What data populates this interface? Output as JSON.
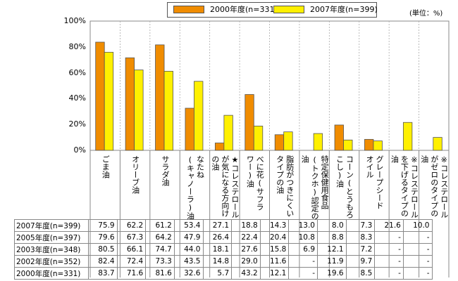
{
  "unit_label": "(単位：%)",
  "chart_data": {
    "type": "bar",
    "ylim": [
      0,
      100
    ],
    "yticks": [
      "0%",
      "20%",
      "40%",
      "60%",
      "80%",
      "100%"
    ],
    "categories": [
      "ごま油",
      "オリーブ油",
      "サラダ油",
      "なたね(キャノーラ)油",
      "★コレステロールが気になる方向けの油",
      "べに花(サフラワー)油",
      "脂肪がつきにくいタイプの油",
      "特定保健用食品(トクホ)認定の油",
      "コーン(とうもろこし)油",
      "グレープシードオイル",
      "※コレステロールを下げるタイプの油",
      "※コレステロールがゼロのタイプの油"
    ],
    "category_lines": [
      [
        "ごま油"
      ],
      [
        "オリーブ油"
      ],
      [
        "サラダ油"
      ],
      [
        "なたね",
        "(キャノーラ)油"
      ],
      [
        "★コレステロール",
        "が気になる方向け",
        "の油"
      ],
      [
        "べに花(サフラ",
        "ワー)油"
      ],
      [
        "脂肪がつきにくい",
        "タイプの油"
      ],
      [
        "特定保健用食品",
        "(トクホ)認定の",
        "油"
      ],
      [
        "コーン(とうもろ",
        "こし)油"
      ],
      [
        "グレープシード",
        "オイル"
      ],
      [
        "※コレステロール",
        "を下げるタイプの",
        "油"
      ],
      [
        "※コレステロール",
        "がゼロのタイプの",
        "油"
      ]
    ],
    "series": [
      {
        "name": "2000年度(n=331)",
        "color": "#F08C00",
        "values": [
          83.7,
          71.6,
          81.6,
          32.6,
          5.7,
          43.2,
          12.1,
          null,
          19.6,
          8.5,
          null,
          null
        ]
      },
      {
        "name": "2007年度(n=399)",
        "color": "#FFF000",
        "values": [
          75.9,
          62.2,
          61.2,
          53.4,
          27.1,
          18.8,
          14.3,
          13.0,
          8.0,
          7.3,
          21.6,
          10.0
        ]
      }
    ],
    "table": {
      "rows": [
        {
          "label": "2007年度(n=399)",
          "values": [
            "75.9",
            "62.2",
            "61.2",
            "53.4",
            "27.1",
            "18.8",
            "14.3",
            "13.0",
            "8.0",
            "7.3",
            "21.6",
            "10.0"
          ]
        },
        {
          "label": "2005年度(n=397)",
          "values": [
            "79.6",
            "67.3",
            "64.2",
            "47.9",
            "26.4",
            "22.4",
            "20.4",
            "10.8",
            "8.8",
            "8.3",
            "-",
            "-"
          ]
        },
        {
          "label": "2003年度(n=348)",
          "values": [
            "80.5",
            "66.1",
            "74.7",
            "44.0",
            "18.1",
            "27.6",
            "15.8",
            "6.9",
            "12.1",
            "7.2",
            "-",
            "-"
          ]
        },
        {
          "label": "2002年度(n=352)",
          "values": [
            "82.4",
            "72.4",
            "73.3",
            "43.5",
            "14.8",
            "29.0",
            "11.6",
            "-",
            "11.9",
            "9.7",
            "-",
            "-"
          ]
        },
        {
          "label": "2000年度(n=331)",
          "values": [
            "83.7",
            "71.6",
            "81.6",
            "32.6",
            "5.7",
            "43.2",
            "12.1",
            "-",
            "19.6",
            "8.5",
            "-",
            "-"
          ]
        }
      ]
    }
  }
}
